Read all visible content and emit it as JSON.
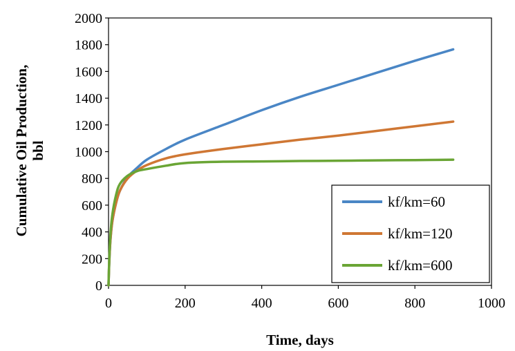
{
  "chart_data": {
    "type": "line",
    "title": "",
    "xlabel": "Time, days",
    "ylabel_lines": [
      "Cumulative Oil Production,",
      "bbl"
    ],
    "xlim": [
      0,
      1000
    ],
    "ylim": [
      0,
      2000
    ],
    "xticks": [
      0,
      200,
      400,
      600,
      800,
      1000
    ],
    "yticks": [
      0,
      200,
      400,
      600,
      800,
      1000,
      1200,
      1400,
      1600,
      1800,
      2000
    ],
    "grid": false,
    "legend_position": "bottom-right",
    "series": [
      {
        "name": "kf/km=60",
        "color": "#4a86c5",
        "points": [
          [
            0,
            0
          ],
          [
            2,
            180
          ],
          [
            5,
            340
          ],
          [
            10,
            480
          ],
          [
            20,
            620
          ],
          [
            30,
            710
          ],
          [
            50,
            810
          ],
          [
            75,
            880
          ],
          [
            100,
            940
          ],
          [
            150,
            1020
          ],
          [
            200,
            1090
          ],
          [
            300,
            1200
          ],
          [
            400,
            1310
          ],
          [
            500,
            1410
          ],
          [
            600,
            1500
          ],
          [
            700,
            1590
          ],
          [
            800,
            1680
          ],
          [
            900,
            1765
          ]
        ]
      },
      {
        "name": "kf/km=120",
        "color": "#cf7734",
        "points": [
          [
            0,
            0
          ],
          [
            2,
            180
          ],
          [
            5,
            340
          ],
          [
            10,
            480
          ],
          [
            20,
            620
          ],
          [
            30,
            710
          ],
          [
            50,
            800
          ],
          [
            75,
            860
          ],
          [
            100,
            900
          ],
          [
            150,
            950
          ],
          [
            200,
            980
          ],
          [
            300,
            1020
          ],
          [
            400,
            1055
          ],
          [
            500,
            1090
          ],
          [
            600,
            1120
          ],
          [
            700,
            1155
          ],
          [
            800,
            1190
          ],
          [
            900,
            1225
          ]
        ]
      },
      {
        "name": "kf/km=600",
        "color": "#6aa535",
        "points": [
          [
            0,
            0
          ],
          [
            2,
            200
          ],
          [
            5,
            380
          ],
          [
            10,
            530
          ],
          [
            20,
            680
          ],
          [
            30,
            760
          ],
          [
            50,
            820
          ],
          [
            75,
            855
          ],
          [
            100,
            870
          ],
          [
            150,
            895
          ],
          [
            200,
            915
          ],
          [
            300,
            925
          ],
          [
            400,
            927
          ],
          [
            500,
            930
          ],
          [
            600,
            932
          ],
          [
            700,
            935
          ],
          [
            800,
            937
          ],
          [
            900,
            940
          ]
        ]
      }
    ]
  }
}
